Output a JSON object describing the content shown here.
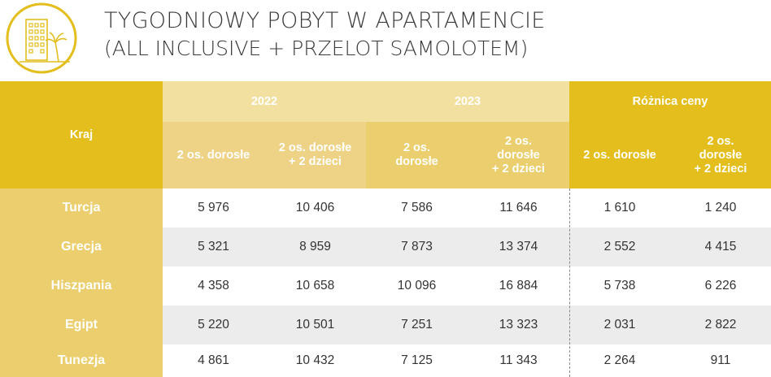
{
  "header": {
    "title": "TYGODNIOWY POBYT W APARTAMENCIE",
    "subtitle": "(ALL INCLUSIVE + PRZELOT SAMOLOTEM)",
    "logo_icon": "apartment-palm-icon",
    "accent_color": "#e3be1c"
  },
  "table": {
    "country_header": "Kraj",
    "groups": [
      {
        "label": "2022",
        "sub": [
          "2 os. dorosłe",
          "2 os. dorosłe\n+ 2 dzieci"
        ]
      },
      {
        "label": "2023",
        "sub": [
          "2 os.\ndorosłe",
          "2 os.\ndorosłe\n+ 2 dzieci"
        ]
      },
      {
        "label": "Różnica ceny",
        "sub": [
          "2 os. dorosłe",
          "2 os.\ndorosłe\n+ 2 dzieci"
        ]
      }
    ],
    "rows": [
      {
        "country": "Turcja",
        "values": [
          "5 976",
          "10 406",
          "7 586",
          "11 646",
          "1 610",
          "1 240"
        ]
      },
      {
        "country": "Grecja",
        "values": [
          "5 321",
          "8 959",
          "7 873",
          "13 374",
          "2 552",
          "4 415"
        ]
      },
      {
        "country": "Hiszpania",
        "values": [
          "4 358",
          "10 658",
          "10 096",
          "16 884",
          "5 738",
          "6 226"
        ]
      },
      {
        "country": "Egipt",
        "values": [
          "5 220",
          "10 501",
          "7 251",
          "13 323",
          "2 031",
          "2 822"
        ]
      },
      {
        "country": "Tunezja",
        "values": [
          "4 861",
          "10 432",
          "7 125",
          "11 343",
          "2 264",
          "911"
        ]
      }
    ]
  }
}
